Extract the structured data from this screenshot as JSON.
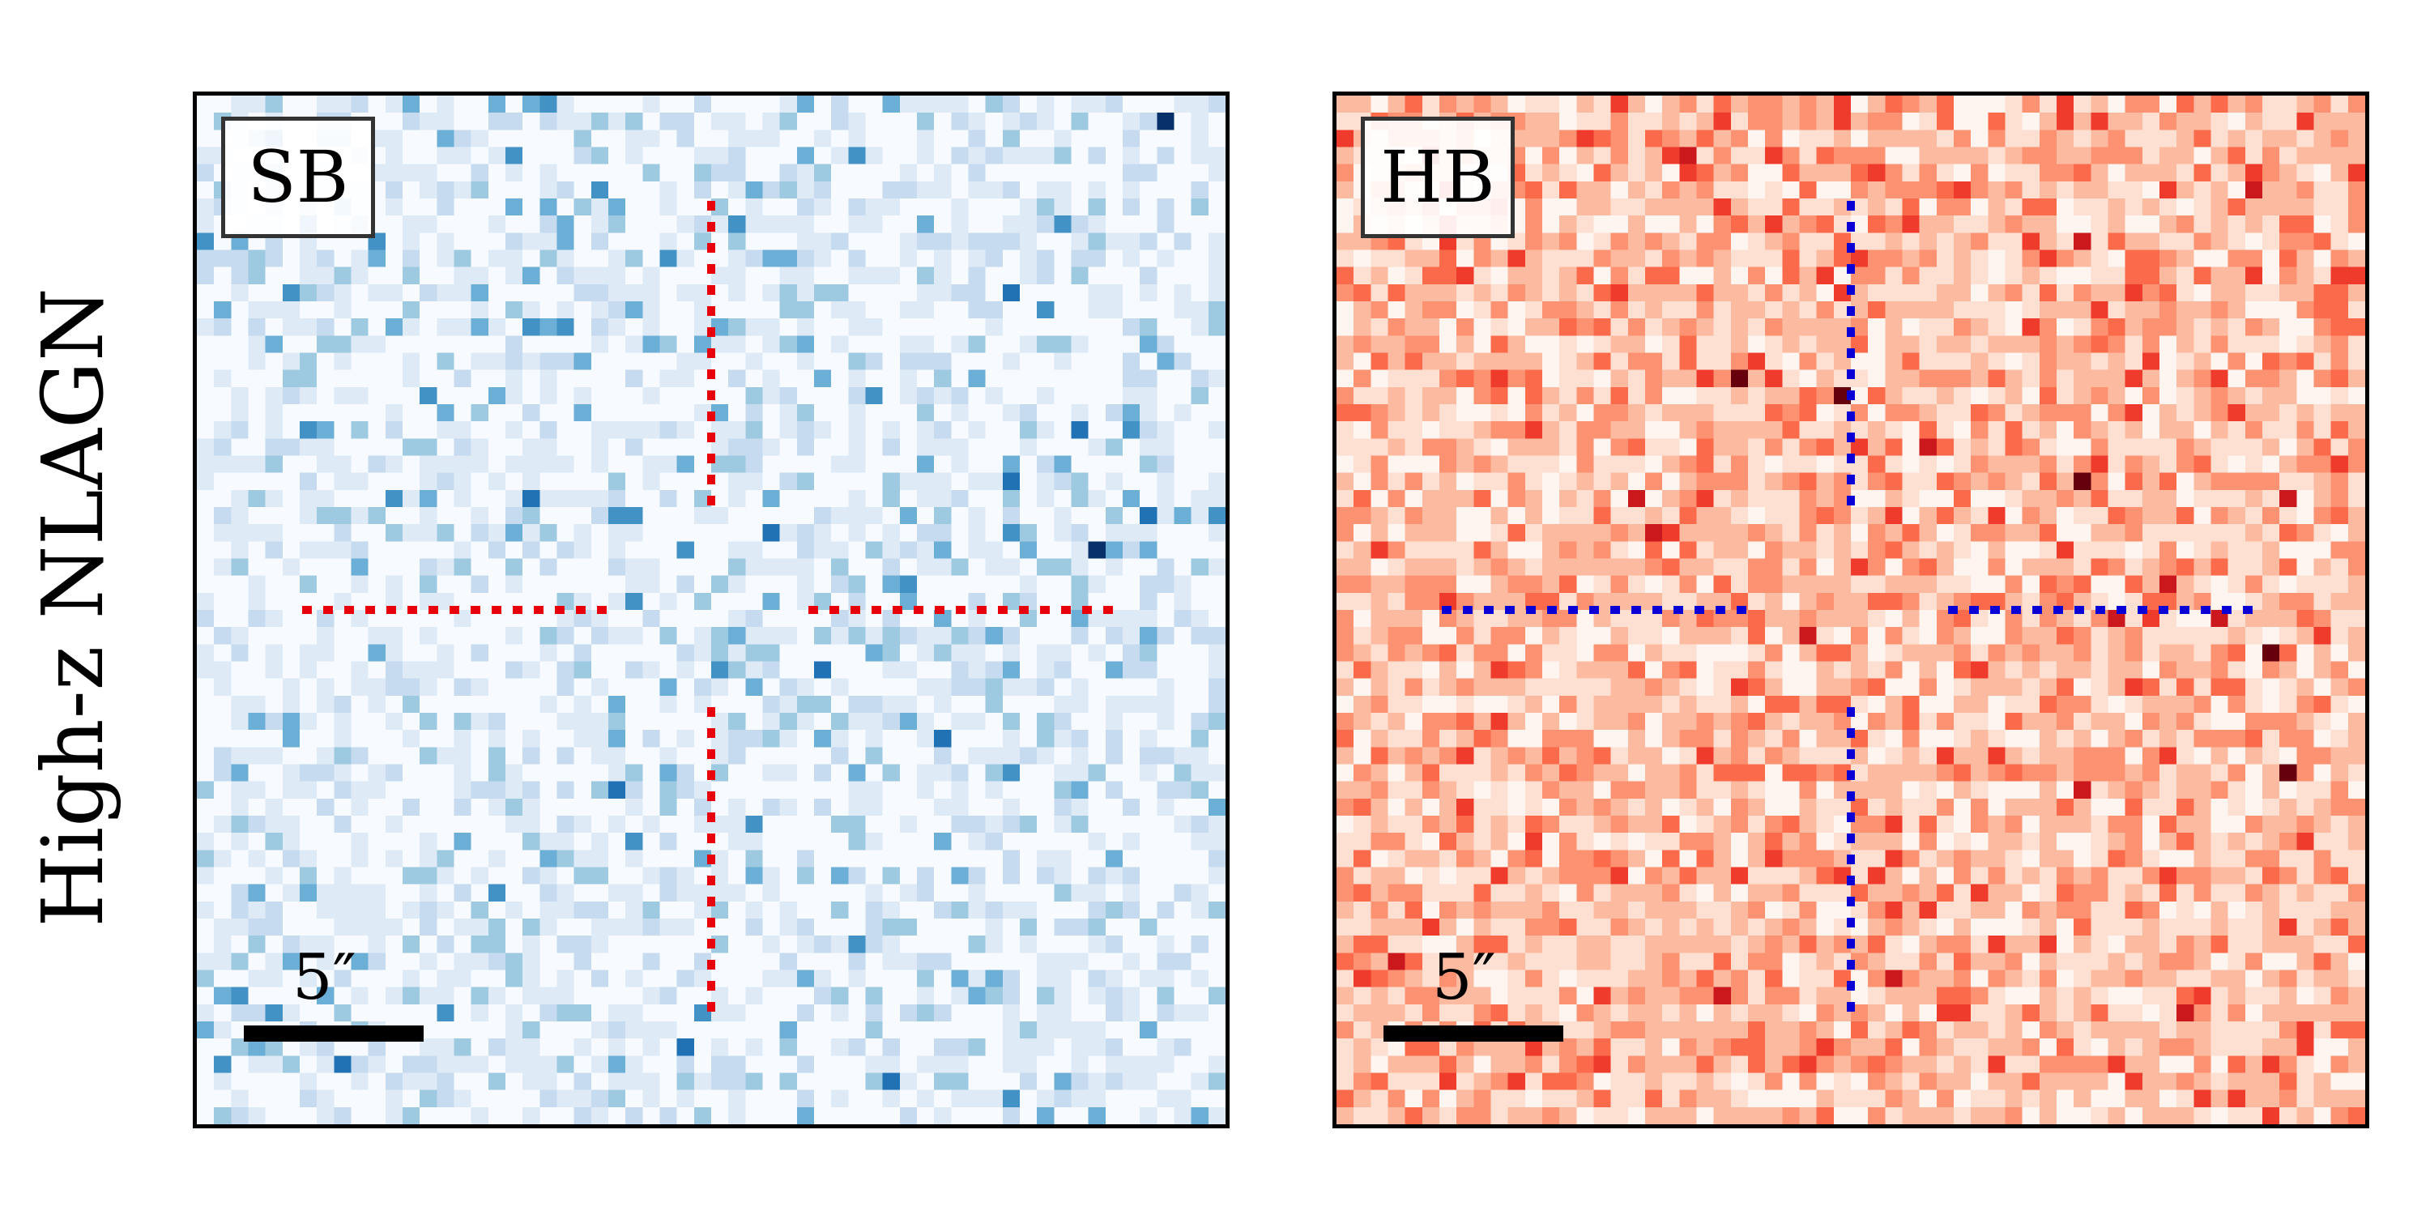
{
  "row_label": "High-z NLAGN",
  "panels": [
    {
      "label": "SB",
      "scale_label": "5″",
      "colormap": "blues",
      "crosshair_color": "#e8000b"
    },
    {
      "label": "HB",
      "scale_label": "5″",
      "colormap": "reds",
      "crosshair_color": "#0a00d6"
    }
  ]
}
